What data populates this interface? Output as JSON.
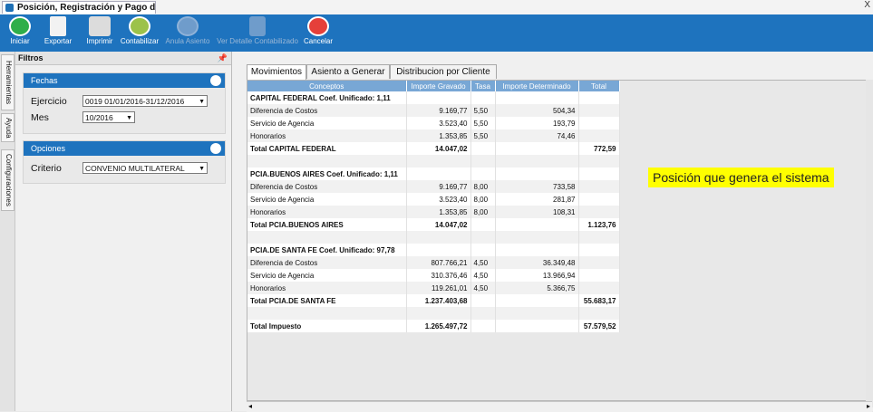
{
  "window": {
    "tab_title": "Posición, Registración y Pago de I...",
    "close_glyph": "X"
  },
  "toolbar": {
    "iniciar": "Iniciar",
    "exportar": "Exportar",
    "imprimir": "Imprimir",
    "contabilizar": "Contabilizar",
    "anula_asiento": "Anula Asiento",
    "ver_detalle": "Ver Detalle Contabilizado",
    "cancelar": "Cancelar"
  },
  "side_tabs": {
    "herramientas": "Herramientas",
    "ayuda": "Ayuda",
    "configuraciones": "Configuraciones"
  },
  "filters": {
    "title": "Filtros",
    "pin_glyph": "📌",
    "fechas": {
      "title": "Fechas",
      "ejercicio_label": "Ejercicio",
      "ejercicio_value": "0019 01/01/2016-31/12/2016",
      "mes_label": "Mes",
      "mes_value": "10/2016"
    },
    "opciones": {
      "title": "Opciones",
      "criterio_label": "Criterio",
      "criterio_value": "CONVENIO MULTILATERAL"
    }
  },
  "main": {
    "tabs": [
      "Movimientos",
      "Asiento a Generar",
      "Distribucion por Cliente"
    ],
    "columns": [
      "Conceptos",
      "Importe Gravado",
      "Tasa",
      "Importe Determinado",
      "Total"
    ],
    "rows": [
      {
        "c": "CAPITAL FEDERAL    Coef. Unificado: 1,11",
        "g": "",
        "t": "",
        "d": "",
        "tot": "",
        "bold": true
      },
      {
        "c": "Diferencia de Costos",
        "g": "9.169,77",
        "t": "5,50",
        "d": "504,34",
        "tot": ""
      },
      {
        "c": "Servicio de Agencia",
        "g": "3.523,40",
        "t": "5,50",
        "d": "193,79",
        "tot": ""
      },
      {
        "c": "Honorarios",
        "g": "1.353,85",
        "t": "5,50",
        "d": "74,46",
        "tot": ""
      },
      {
        "c": "Total CAPITAL FEDERAL",
        "g": "14.047,02",
        "t": "",
        "d": "",
        "tot": "772,59",
        "bold": true
      },
      {
        "c": "",
        "g": "",
        "t": "",
        "d": "",
        "tot": ""
      },
      {
        "c": "PCIA.BUENOS AIRES    Coef. Unificado: 1,11",
        "g": "",
        "t": "",
        "d": "",
        "tot": "",
        "bold": true
      },
      {
        "c": "Diferencia de Costos",
        "g": "9.169,77",
        "t": "8,00",
        "d": "733,58",
        "tot": ""
      },
      {
        "c": "Servicio de Agencia",
        "g": "3.523,40",
        "t": "8,00",
        "d": "281,87",
        "tot": ""
      },
      {
        "c": "Honorarios",
        "g": "1.353,85",
        "t": "8,00",
        "d": "108,31",
        "tot": ""
      },
      {
        "c": "Total PCIA.BUENOS AIRES",
        "g": "14.047,02",
        "t": "",
        "d": "",
        "tot": "1.123,76",
        "bold": true
      },
      {
        "c": "",
        "g": "",
        "t": "",
        "d": "",
        "tot": ""
      },
      {
        "c": "PCIA.DE SANTA FE    Coef. Unificado: 97,78",
        "g": "",
        "t": "",
        "d": "",
        "tot": "",
        "bold": true
      },
      {
        "c": "Diferencia de Costos",
        "g": "807.766,21",
        "t": "4,50",
        "d": "36.349,48",
        "tot": ""
      },
      {
        "c": "Servicio de Agencia",
        "g": "310.376,46",
        "t": "4,50",
        "d": "13.966,94",
        "tot": ""
      },
      {
        "c": "Honorarios",
        "g": "119.261,01",
        "t": "4,50",
        "d": "5.366,75",
        "tot": ""
      },
      {
        "c": "Total PCIA.DE SANTA FE",
        "g": "1.237.403,68",
        "t": "",
        "d": "",
        "tot": "55.683,17",
        "bold": true
      },
      {
        "c": "",
        "g": "",
        "t": "",
        "d": "",
        "tot": ""
      },
      {
        "c": "Total Impuesto",
        "g": "1.265.497,72",
        "t": "",
        "d": "",
        "tot": "57.579,52",
        "bold": true
      }
    ]
  },
  "callout": "Posición que genera el sistema",
  "scroll": {
    "left_arrow": "◂",
    "right_arrow": "▸"
  },
  "colors": {
    "accent": "#1e73be",
    "iniciar": "#2fae4a",
    "cancelar": "#e5403a",
    "callout": "#ffff00"
  }
}
